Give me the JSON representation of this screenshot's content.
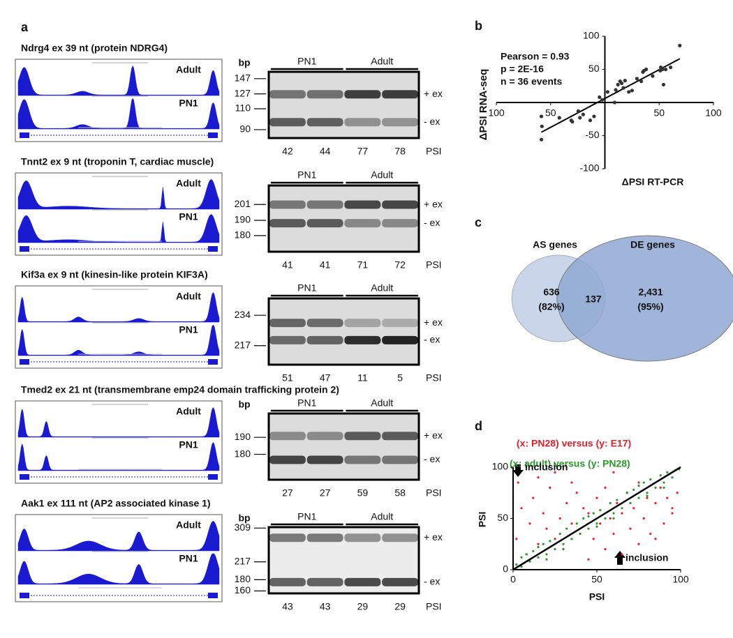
{
  "panel_a": {
    "label": "a",
    "group_labels": [
      "PN1",
      "Adult"
    ],
    "track_labels": [
      "Adult",
      "PN1"
    ],
    "band_labels": [
      "+ ex",
      "- ex"
    ],
    "bp_label": "bp",
    "psi_label": "PSI",
    "log_scale": true,
    "genes": [
      {
        "title": "Ndrg4 ex 39 nt (protein NDRG4)",
        "show_bp": true,
        "ylim": [
          83,
          157
        ],
        "yticks": [
          147,
          127,
          110,
          90
        ],
        "psi": [
          42,
          44,
          77,
          78
        ]
      },
      {
        "title": "Tnnt2 ex 9 nt (troponin T, cardiac muscle)",
        "show_bp": false,
        "ylim": [
          170,
          215
        ],
        "yticks": [
          201,
          190,
          180
        ],
        "psi": [
          41,
          41,
          71,
          72
        ]
      },
      {
        "title": "Kif3a ex 9 nt (kinesin-like protein KIF3A)",
        "show_bp": false,
        "ylim": [
          207,
          244
        ],
        "yticks": [
          234,
          217
        ],
        "psi": [
          51,
          47,
          11,
          5
        ]
      },
      {
        "title": "Tmed2 ex 21 nt (transmembrane emp24 domain trafficking protein 2)",
        "show_bp": true,
        "ylim": [
          166,
          205
        ],
        "yticks": [
          190,
          180
        ],
        "psi": [
          27,
          27,
          59,
          58
        ]
      },
      {
        "title": "Aak1 ex 111 nt (AP2 associated kinase 1)",
        "show_bp": true,
        "ylim": [
          156,
          312
        ],
        "yticks": [
          309,
          217,
          180,
          160
        ],
        "psi": [
          43,
          43,
          29,
          29
        ]
      }
    ]
  },
  "panel_b": {
    "label": "b",
    "type": "scatter",
    "stats": [
      "Pearson = 0.93",
      "p  = 2E-16",
      "n = 36 events"
    ],
    "xlabel": "ΔPSI RT-PCR",
    "ylabel": "ΔPSI RNA-seq",
    "xlim": [
      -100,
      100
    ],
    "ylim": [
      -100,
      100
    ],
    "xticks": [
      {
        "value": -100,
        "label": "100"
      },
      {
        "value": -50,
        "label": "50"
      },
      50,
      100
    ],
    "yticks": [
      -100,
      -50,
      50,
      100
    ],
    "color": "#333333",
    "x": [
      -58.5,
      -58,
      -58.5,
      -31,
      -30,
      -23,
      -20,
      -13.5,
      -5,
      -2.5,
      2.5,
      10,
      9,
      12,
      14,
      15.5,
      18.5,
      17,
      22,
      25,
      29.5,
      33.5,
      35,
      36,
      38,
      44,
      51,
      51.5,
      53,
      54,
      56,
      60.5,
      69,
      -24.5,
      -10,
      -42
    ],
    "y": [
      -21,
      -36,
      -56,
      -27,
      -29,
      -23,
      -18,
      -27,
      8,
      4,
      16,
      19,
      0,
      27,
      32,
      29,
      33,
      22,
      16,
      18,
      36,
      32,
      46,
      48,
      50,
      40,
      48,
      53,
      50,
      27,
      50,
      53,
      86,
      -13,
      -21,
      -23
    ]
  },
  "panel_c": {
    "label": "c",
    "type": "venn",
    "sets": [
      "AS genes",
      "DE genes"
    ],
    "values": [
      636,
      137,
      2431
    ],
    "value_labels": [
      "636",
      "137",
      "2,431"
    ],
    "percents": [
      82,
      95
    ],
    "percent_labels": [
      "(82%)",
      "(95%)"
    ],
    "colors": [
      "#c9d5e8",
      "#8fa8d2"
    ]
  },
  "panel_d": {
    "label": "d",
    "type": "scatter",
    "xlabel": "PSI",
    "ylabel": "PSI",
    "xlim": [
      0,
      100
    ],
    "ylim": [
      0,
      100
    ],
    "xticks": [
      0,
      50,
      100
    ],
    "yticks": [
      0,
      50,
      100
    ],
    "annotations": [
      "inclusion",
      "inclusion"
    ],
    "series": [
      {
        "name": "(x: PN28) versus (y: E17)",
        "color": "#e8202a",
        "x": [
          2,
          5,
          8,
          10,
          12,
          15,
          18,
          20,
          22,
          25,
          28,
          30,
          32,
          35,
          38,
          40,
          42,
          45,
          48,
          50,
          52,
          55,
          58,
          60,
          62,
          65,
          68,
          70,
          72,
          75,
          78,
          80,
          82,
          85,
          88,
          90,
          92,
          95,
          98,
          3,
          15,
          25,
          35,
          45,
          55,
          65,
          75,
          85,
          95,
          60
        ],
        "y": [
          30,
          60,
          15,
          45,
          70,
          25,
          55,
          40,
          80,
          30,
          50,
          20,
          65,
          45,
          75,
          35,
          60,
          55,
          30,
          70,
          45,
          80,
          50,
          35,
          65,
          55,
          75,
          40,
          60,
          85,
          50,
          70,
          35,
          65,
          80,
          45,
          70,
          60,
          75,
          85,
          90,
          95,
          85,
          10,
          20,
          15,
          25,
          30,
          55,
          95
        ]
      },
      {
        "name": "(x: adult) versus (y: PN28)",
        "color": "#2a9a2a",
        "x": [
          2,
          5,
          8,
          10,
          12,
          15,
          18,
          20,
          22,
          25,
          28,
          30,
          32,
          35,
          38,
          40,
          42,
          45,
          48,
          50,
          52,
          55,
          58,
          60,
          62,
          65,
          68,
          70,
          72,
          75,
          78,
          80,
          82,
          85,
          88,
          90,
          92,
          95,
          97,
          99,
          5,
          15,
          30,
          45,
          60,
          75,
          90,
          20,
          50,
          80
        ],
        "y": [
          5,
          3,
          15,
          8,
          18,
          12,
          25,
          15,
          28,
          20,
          35,
          25,
          40,
          30,
          45,
          35,
          50,
          40,
          55,
          45,
          58,
          50,
          65,
          55,
          68,
          60,
          75,
          65,
          78,
          70,
          85,
          75,
          88,
          80,
          92,
          85,
          95,
          90,
          97,
          98,
          12,
          22,
          20,
          52,
          50,
          82,
          80,
          10,
          42,
          72
        ]
      }
    ]
  }
}
